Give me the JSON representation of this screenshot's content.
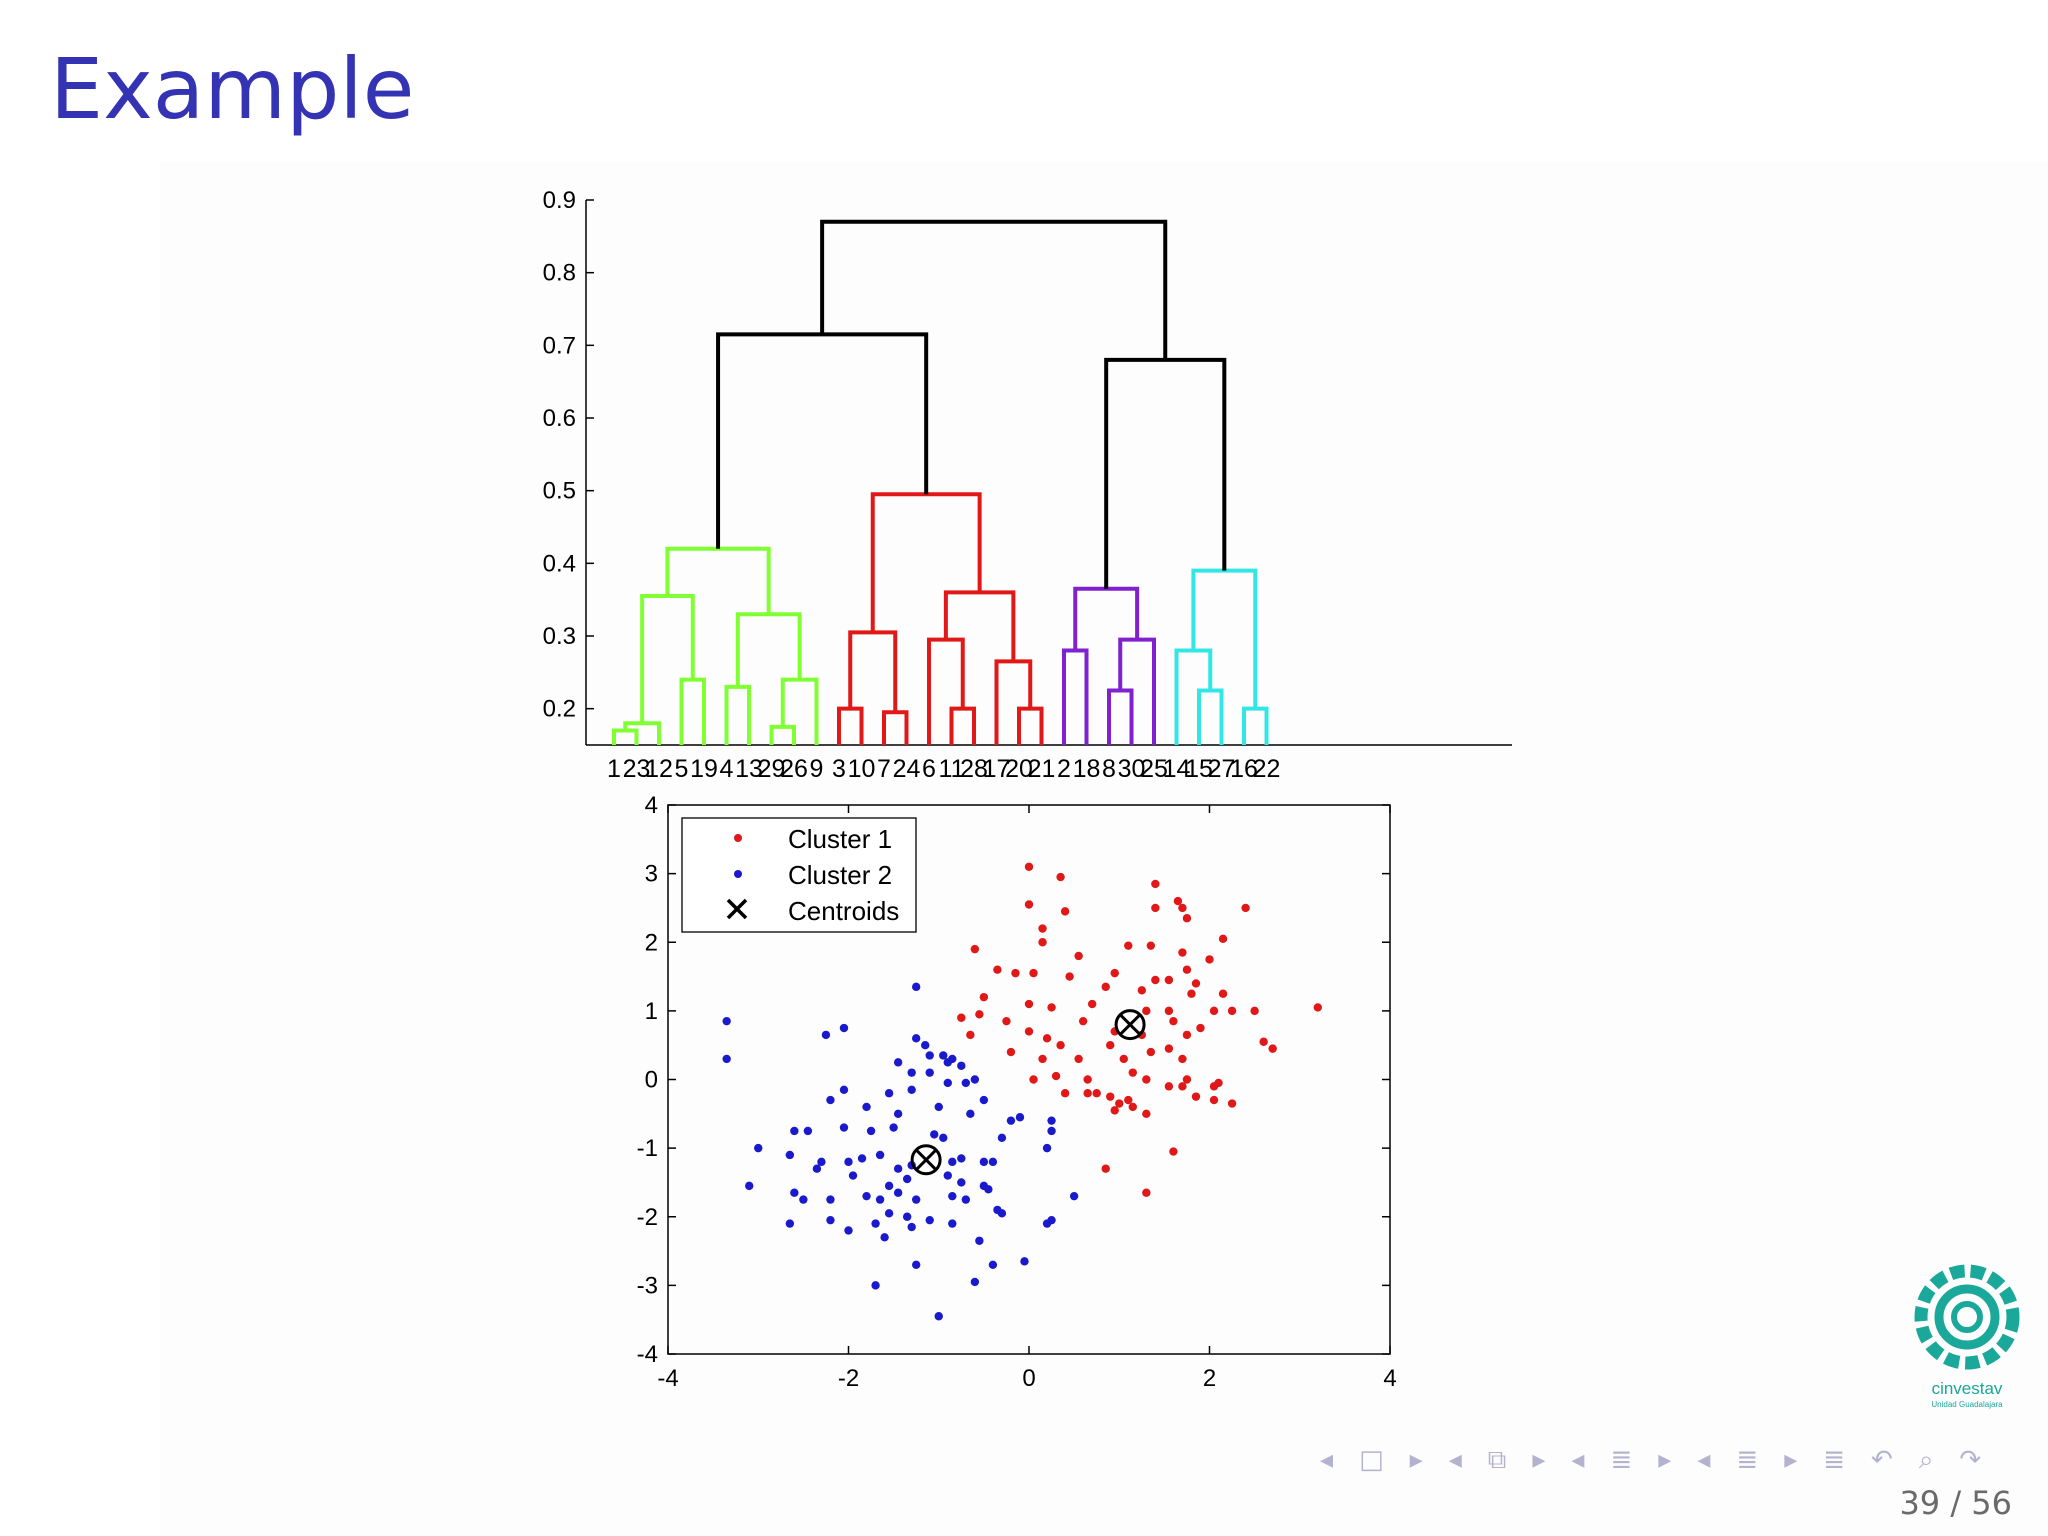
{
  "slide": {
    "title": "Example",
    "page_current": "39",
    "page_total": "56",
    "page_label": "39 / 56"
  },
  "logo": {
    "text": "cinvestav",
    "subtext": "Unidad Guadalajara"
  },
  "nav": {
    "frame_prev": "◂",
    "frame": "□",
    "frame_next": "▸",
    "subsection_prev": "◂",
    "subsection": "⧉",
    "subsection_next": "▸",
    "section_prev": "◂",
    "section": "≣",
    "section_next": "▸",
    "appendix_prev": "◂",
    "appendix": "≣",
    "appendix_next": "▸",
    "toc": "≣",
    "back": "↶",
    "search": "⌕",
    "forward": "↷"
  },
  "colors": {
    "title": "#3333b3",
    "green": "#80ff33",
    "red": "#e01818",
    "purple": "#8020d0",
    "cyan": "#33e6e6",
    "link": "#000000",
    "cluster1": "#e01818",
    "cluster2": "#1a1acc",
    "logo": "#1aa89a"
  },
  "chart_data": [
    {
      "type": "dendrogram",
      "ylim": [
        0.15,
        0.9
      ],
      "yticks": [
        "0.2",
        "0.3",
        "0.4",
        "0.5",
        "0.6",
        "0.7",
        "0.8",
        "0.9"
      ],
      "leaves": [
        "1",
        "23",
        "12",
        "5",
        "19",
        "4",
        "13",
        "29",
        "26",
        "9",
        "3",
        "10",
        "7",
        "24",
        "6",
        "11",
        "28",
        "17",
        "20",
        "21",
        "2",
        "18",
        "8",
        "30",
        "25",
        "14",
        "15",
        "27",
        "16",
        "22"
      ],
      "merges": [
        {
          "a": "L0",
          "b": "L1",
          "h": 0.17,
          "c": "green"
        },
        {
          "a": "M0",
          "b": "L2",
          "h": 0.18,
          "c": "green"
        },
        {
          "a": "L3",
          "b": "L4",
          "h": 0.24,
          "c": "green"
        },
        {
          "a": "M1",
          "b": "M2",
          "h": 0.355,
          "c": "green"
        },
        {
          "a": "L5",
          "b": "L6",
          "h": 0.23,
          "c": "green"
        },
        {
          "a": "L7",
          "b": "L8",
          "h": 0.175,
          "c": "green"
        },
        {
          "a": "M5",
          "b": "L9",
          "h": 0.24,
          "c": "green"
        },
        {
          "a": "M4",
          "b": "M6",
          "h": 0.33,
          "c": "green"
        },
        {
          "a": "M3",
          "b": "M7",
          "h": 0.42,
          "c": "green"
        },
        {
          "a": "L10",
          "b": "L11",
          "h": 0.2,
          "c": "red"
        },
        {
          "a": "L12",
          "b": "L13",
          "h": 0.195,
          "c": "red"
        },
        {
          "a": "M9",
          "b": "M10",
          "h": 0.305,
          "c": "red"
        },
        {
          "a": "L15",
          "b": "L16",
          "h": 0.2,
          "c": "red"
        },
        {
          "a": "L14",
          "b": "M12",
          "h": 0.295,
          "c": "red"
        },
        {
          "a": "L18",
          "b": "L19",
          "h": 0.2,
          "c": "red"
        },
        {
          "a": "L17",
          "b": "M14",
          "h": 0.265,
          "c": "red"
        },
        {
          "a": "M13",
          "b": "M15",
          "h": 0.36,
          "c": "red"
        },
        {
          "a": "M11",
          "b": "M16",
          "h": 0.495,
          "c": "red"
        },
        {
          "a": "L20",
          "b": "L21",
          "h": 0.28,
          "c": "purple"
        },
        {
          "a": "L22",
          "b": "L23",
          "h": 0.225,
          "c": "purple"
        },
        {
          "a": "M19",
          "b": "L24",
          "h": 0.295,
          "c": "purple"
        },
        {
          "a": "M18",
          "b": "M20",
          "h": 0.365,
          "c": "purple"
        },
        {
          "a": "L26",
          "b": "L27",
          "h": 0.225,
          "c": "cyan"
        },
        {
          "a": "L25",
          "b": "M22",
          "h": 0.28,
          "c": "cyan"
        },
        {
          "a": "L28",
          "b": "L29",
          "h": 0.2,
          "c": "cyan"
        },
        {
          "a": "M23",
          "b": "M24",
          "h": 0.39,
          "c": "cyan"
        },
        {
          "a": "M8",
          "b": "M17",
          "h": 0.715,
          "c": "link"
        },
        {
          "a": "M21",
          "b": "M25",
          "h": 0.68,
          "c": "link"
        },
        {
          "a": "M26",
          "b": "M27",
          "h": 0.87,
          "c": "link"
        }
      ]
    },
    {
      "type": "scatter",
      "xlim": [
        -4,
        4
      ],
      "ylim": [
        -4,
        4
      ],
      "xticks": [
        "-4",
        "-2",
        "0",
        "2",
        "4"
      ],
      "yticks": [
        "-4",
        "-3",
        "-2",
        "-1",
        "0",
        "1",
        "2",
        "3",
        "4"
      ],
      "legend": {
        "position": "top-left",
        "entries": [
          "Cluster 1",
          "Cluster 2",
          "Centroids"
        ]
      },
      "series": [
        {
          "name": "Cluster 1",
          "color": "cluster1",
          "points": [
            [
              0.0,
              3.1
            ],
            [
              0.35,
              2.95
            ],
            [
              1.4,
              2.85
            ],
            [
              1.65,
              2.6
            ],
            [
              1.7,
              2.5
            ],
            [
              2.4,
              2.5
            ],
            [
              0.0,
              2.55
            ],
            [
              0.4,
              2.45
            ],
            [
              1.4,
              2.5
            ],
            [
              1.75,
              2.35
            ],
            [
              0.15,
              2.2
            ],
            [
              0.15,
              2.0
            ],
            [
              -0.6,
              1.9
            ],
            [
              0.55,
              1.8
            ],
            [
              1.1,
              1.95
            ],
            [
              1.35,
              1.95
            ],
            [
              1.7,
              1.85
            ],
            [
              2.15,
              2.05
            ],
            [
              2.0,
              1.75
            ],
            [
              1.75,
              1.6
            ],
            [
              -0.35,
              1.6
            ],
            [
              -0.15,
              1.55
            ],
            [
              0.05,
              1.55
            ],
            [
              0.45,
              1.5
            ],
            [
              0.95,
              1.55
            ],
            [
              1.4,
              1.45
            ],
            [
              1.55,
              1.45
            ],
            [
              1.85,
              1.4
            ],
            [
              0.85,
              1.35
            ],
            [
              1.25,
              1.3
            ],
            [
              1.8,
              1.25
            ],
            [
              -0.5,
              1.2
            ],
            [
              0.0,
              1.1
            ],
            [
              0.25,
              1.05
            ],
            [
              0.7,
              1.1
            ],
            [
              1.3,
              1.0
            ],
            [
              1.55,
              1.0
            ],
            [
              2.15,
              1.25
            ],
            [
              2.05,
              1.0
            ],
            [
              2.25,
              1.0
            ],
            [
              2.5,
              1.0
            ],
            [
              3.2,
              1.05
            ],
            [
              -0.75,
              0.9
            ],
            [
              -0.55,
              0.95
            ],
            [
              -0.25,
              0.85
            ],
            [
              0.0,
              0.7
            ],
            [
              0.6,
              0.85
            ],
            [
              0.95,
              0.7
            ],
            [
              1.25,
              0.65
            ],
            [
              1.6,
              0.85
            ],
            [
              1.75,
              0.65
            ],
            [
              -0.65,
              0.65
            ],
            [
              0.2,
              0.6
            ],
            [
              0.35,
              0.5
            ],
            [
              0.9,
              0.5
            ],
            [
              1.35,
              0.4
            ],
            [
              1.55,
              0.45
            ],
            [
              -0.2,
              0.4
            ],
            [
              0.15,
              0.3
            ],
            [
              0.55,
              0.3
            ],
            [
              1.05,
              0.3
            ],
            [
              1.7,
              0.3
            ],
            [
              2.6,
              0.55
            ],
            [
              2.7,
              0.45
            ],
            [
              0.05,
              0.0
            ],
            [
              0.3,
              0.05
            ],
            [
              0.65,
              0.0
            ],
            [
              1.15,
              0.1
            ],
            [
              1.3,
              0.0
            ],
            [
              1.75,
              0.0
            ],
            [
              1.7,
              -0.1
            ],
            [
              2.05,
              -0.1
            ],
            [
              0.75,
              -0.2
            ],
            [
              0.9,
              -0.25
            ],
            [
              1.0,
              -0.35
            ],
            [
              1.1,
              -0.3
            ],
            [
              1.3,
              -0.5
            ],
            [
              1.85,
              -0.25
            ],
            [
              2.05,
              -0.3
            ],
            [
              2.25,
              -0.35
            ],
            [
              2.1,
              -0.05
            ],
            [
              1.6,
              -1.05
            ],
            [
              0.85,
              -1.3
            ],
            [
              1.3,
              -1.65
            ],
            [
              1.15,
              -0.4
            ],
            [
              0.95,
              -0.45
            ],
            [
              0.65,
              -0.2
            ],
            [
              0.4,
              -0.2
            ],
            [
              1.55,
              -0.1
            ],
            [
              1.9,
              0.75
            ]
          ]
        },
        {
          "name": "Cluster 2",
          "color": "cluster2",
          "points": [
            [
              -3.35,
              0.85
            ],
            [
              -3.35,
              0.3
            ],
            [
              -2.25,
              0.65
            ],
            [
              -2.05,
              0.75
            ],
            [
              -1.25,
              1.35
            ],
            [
              -1.25,
              0.6
            ],
            [
              -1.15,
              0.5
            ],
            [
              -1.1,
              0.35
            ],
            [
              -0.95,
              0.35
            ],
            [
              -0.9,
              0.25
            ],
            [
              -0.85,
              0.3
            ],
            [
              -0.75,
              0.2
            ],
            [
              -1.45,
              0.25
            ],
            [
              -1.3,
              0.1
            ],
            [
              -1.1,
              0.1
            ],
            [
              -0.9,
              -0.05
            ],
            [
              -0.6,
              0.0
            ],
            [
              -2.05,
              -0.15
            ],
            [
              -1.55,
              -0.2
            ],
            [
              -1.3,
              -0.15
            ],
            [
              -0.5,
              -0.3
            ],
            [
              -1.8,
              -0.4
            ],
            [
              -1.45,
              -0.5
            ],
            [
              -1.0,
              -0.4
            ],
            [
              -0.65,
              -0.5
            ],
            [
              -0.2,
              -0.6
            ],
            [
              -0.1,
              -0.55
            ],
            [
              0.25,
              -0.6
            ],
            [
              -2.6,
              -0.75
            ],
            [
              -2.45,
              -0.75
            ],
            [
              -2.05,
              -0.7
            ],
            [
              -1.75,
              -0.75
            ],
            [
              -1.5,
              -0.7
            ],
            [
              -1.05,
              -0.8
            ],
            [
              -0.95,
              -0.85
            ],
            [
              -0.3,
              -0.85
            ],
            [
              0.25,
              -0.75
            ],
            [
              -3.0,
              -1.0
            ],
            [
              -2.65,
              -1.1
            ],
            [
              -2.3,
              -1.2
            ],
            [
              -2.0,
              -1.2
            ],
            [
              -1.85,
              -1.15
            ],
            [
              -1.65,
              -1.1
            ],
            [
              -1.45,
              -1.3
            ],
            [
              -1.3,
              -1.25
            ],
            [
              -0.85,
              -1.2
            ],
            [
              -0.75,
              -1.15
            ],
            [
              -0.5,
              -1.2
            ],
            [
              -0.4,
              -1.2
            ],
            [
              0.2,
              -1.0
            ],
            [
              -2.35,
              -1.3
            ],
            [
              -1.95,
              -1.4
            ],
            [
              -1.55,
              -1.55
            ],
            [
              -1.35,
              -1.45
            ],
            [
              -0.9,
              -1.4
            ],
            [
              -0.75,
              -1.5
            ],
            [
              -0.5,
              -1.55
            ],
            [
              -0.45,
              -1.6
            ],
            [
              -3.1,
              -1.55
            ],
            [
              -2.6,
              -1.65
            ],
            [
              -2.5,
              -1.75
            ],
            [
              -2.2,
              -1.75
            ],
            [
              -1.8,
              -1.7
            ],
            [
              -1.65,
              -1.75
            ],
            [
              -1.45,
              -1.65
            ],
            [
              -1.25,
              -1.75
            ],
            [
              -0.85,
              -1.7
            ],
            [
              -0.7,
              -1.75
            ],
            [
              -1.55,
              -1.95
            ],
            [
              -1.35,
              -2.0
            ],
            [
              -0.35,
              -1.9
            ],
            [
              -0.3,
              -1.95
            ],
            [
              -2.65,
              -2.1
            ],
            [
              -2.2,
              -2.05
            ],
            [
              -2.0,
              -2.2
            ],
            [
              -1.7,
              -2.1
            ],
            [
              -1.3,
              -2.15
            ],
            [
              -1.1,
              -2.05
            ],
            [
              -0.85,
              -2.1
            ],
            [
              0.2,
              -2.1
            ],
            [
              0.25,
              -2.05
            ],
            [
              -1.6,
              -2.3
            ],
            [
              -0.55,
              -2.35
            ],
            [
              0.5,
              -1.7
            ],
            [
              -1.25,
              -2.7
            ],
            [
              -0.4,
              -2.7
            ],
            [
              -0.05,
              -2.65
            ],
            [
              -1.7,
              -3.0
            ],
            [
              -0.6,
              -2.95
            ],
            [
              -1.0,
              -3.45
            ],
            [
              -2.2,
              -0.3
            ],
            [
              -0.7,
              -0.05
            ]
          ]
        }
      ],
      "centroids": [
        [
          1.12,
          0.8
        ],
        [
          -1.14,
          -1.17
        ]
      ]
    }
  ]
}
